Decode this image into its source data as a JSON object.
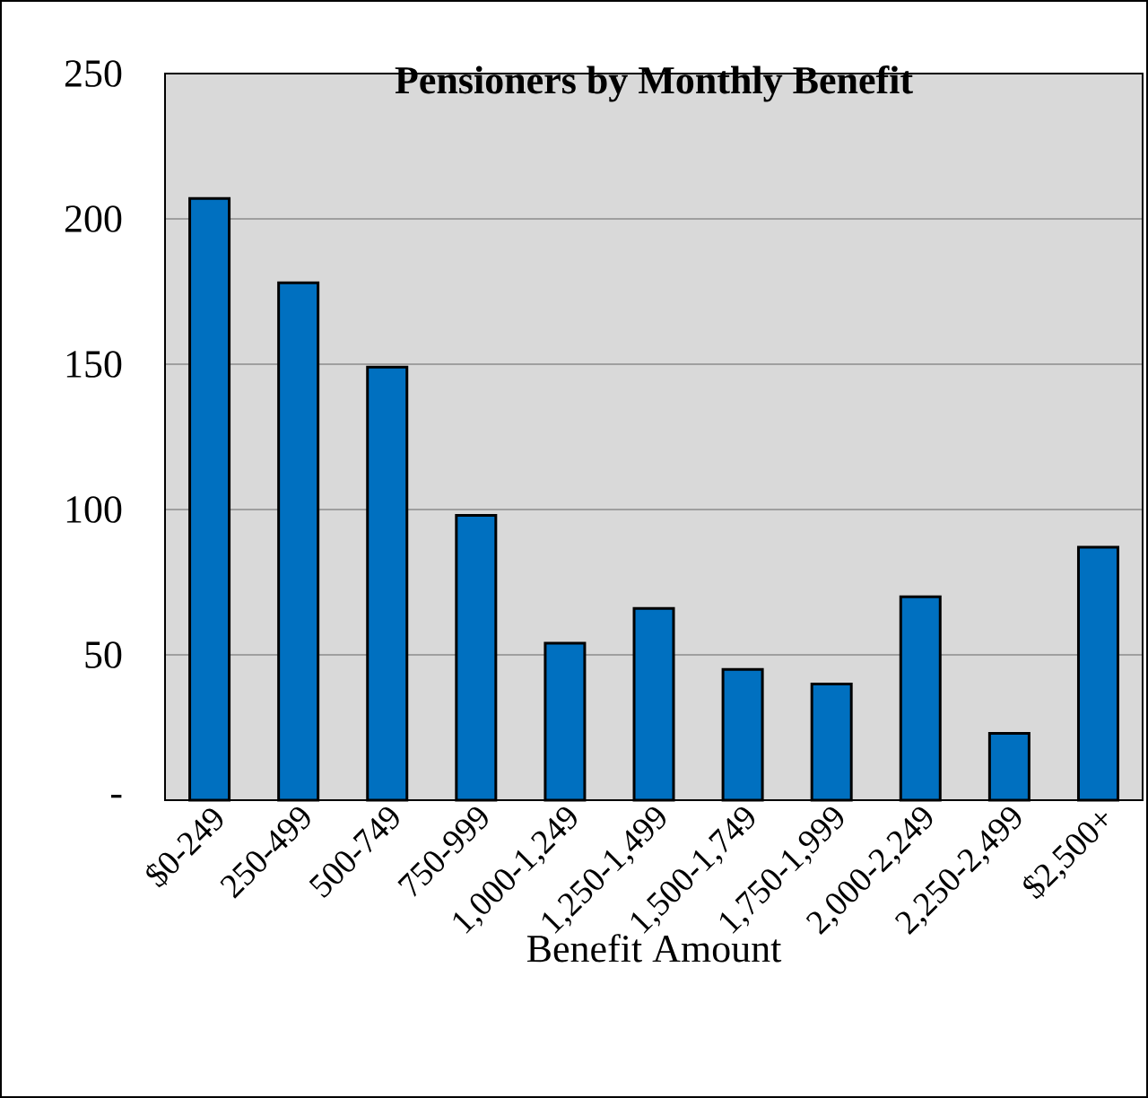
{
  "chart_data": {
    "type": "bar",
    "title": "Pensioners by Monthly Benefit",
    "xlabel": "Benefit Amount",
    "categories": [
      "$0-249",
      "250-499",
      "500-749",
      "750-999",
      "1,000-1,249",
      "1,250-1,499",
      "1,500-1,749",
      "1,750-1,999",
      "2,000-2,249",
      "2,250-2,499",
      "$2,500+"
    ],
    "values": [
      207,
      178,
      149,
      98,
      54,
      66,
      45,
      40,
      70,
      23,
      87
    ],
    "color": "#0070c0",
    "ylim": [
      0,
      250
    ],
    "yticks": [
      {
        "value": 0,
        "label": "-"
      },
      50,
      100,
      150,
      200,
      250
    ],
    "grid": "y"
  }
}
